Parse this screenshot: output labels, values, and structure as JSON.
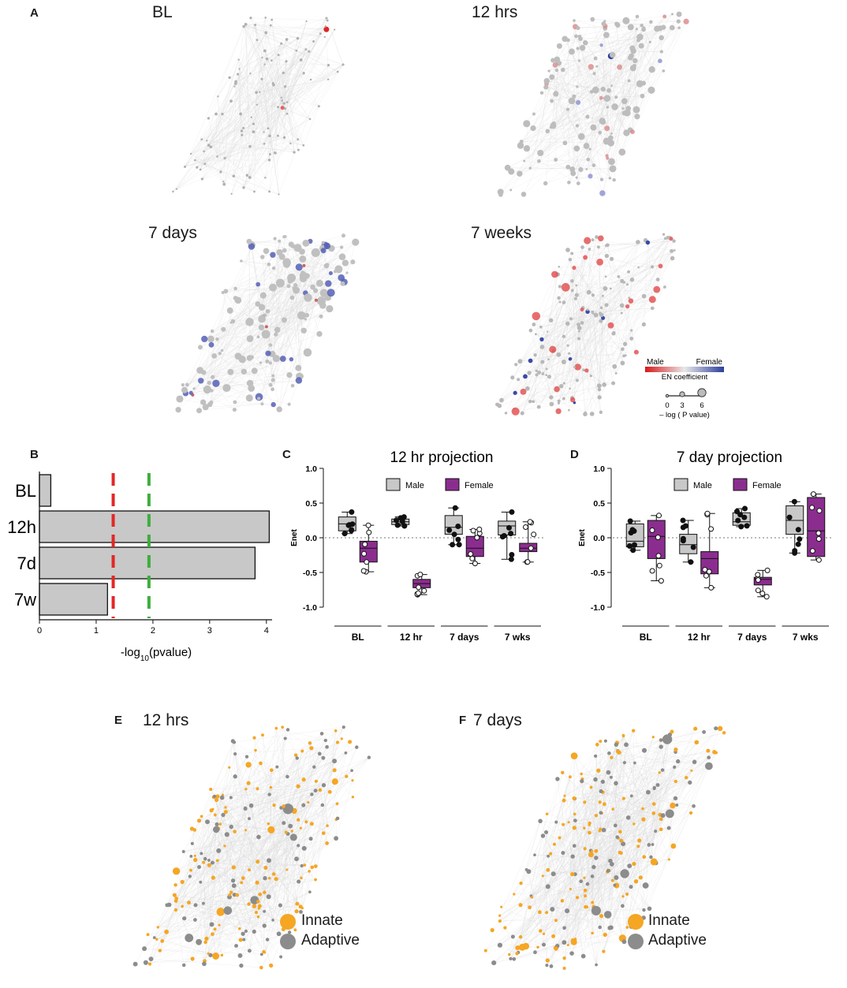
{
  "panel_A": {
    "letter": "A",
    "titles": [
      "BL",
      "12 hrs",
      "7 days",
      "7 weeks"
    ],
    "legend": {
      "male_label": "Male",
      "female_label": "Female",
      "color_title": "EN coefficient",
      "male_color": "#d7191c",
      "female_color": "#2c3e9c",
      "size_ticks": [
        "0",
        "3",
        "6"
      ],
      "size_title": "– log ( P value)"
    }
  },
  "panel_B": {
    "letter": "B",
    "xlabel_prefix": "-log",
    "xlabel_sub": "10",
    "xlabel_suffix": "(pvalue)",
    "chart_data": {
      "type": "bar",
      "orientation": "horizontal",
      "categories": [
        "BL",
        "12h",
        "7d",
        "7w"
      ],
      "values": [
        0.2,
        4.05,
        3.8,
        1.2
      ],
      "xlim": [
        0,
        4.1
      ],
      "xticks": [
        "0",
        "1",
        "2",
        "3",
        "4"
      ],
      "thresholds": [
        {
          "value": 1.3,
          "color": "#e32626"
        },
        {
          "value": 1.93,
          "color": "#3cae3c"
        }
      ]
    }
  },
  "panel_C": {
    "letter": "C",
    "chart_data": {
      "type": "box",
      "title": "12 hr projection",
      "ylabel": "Enet",
      "ylim": [
        -1.0,
        1.0
      ],
      "yticks": [
        "1.0",
        "0.5",
        "0.0",
        "-0.5",
        "-1.0"
      ],
      "groups": [
        "BL",
        "12 hr",
        "7 days",
        "7 wks"
      ],
      "legend": [
        "Male",
        "Female"
      ],
      "series": [
        {
          "name": "Male",
          "color": "#c8c8c8",
          "boxes": [
            {
              "min": 0.06,
              "q1": 0.1,
              "median": 0.2,
              "q3": 0.3,
              "max": 0.37
            },
            {
              "min": 0.17,
              "q1": 0.19,
              "median": 0.23,
              "q3": 0.27,
              "max": 0.3
            },
            {
              "min": -0.1,
              "q1": 0.05,
              "median": 0.15,
              "q3": 0.32,
              "max": 0.43
            },
            {
              "min": -0.31,
              "q1": 0.04,
              "median": 0.17,
              "q3": 0.24,
              "max": 0.37
            }
          ]
        },
        {
          "name": "Female",
          "color": "#8b2d8f",
          "boxes": [
            {
              "min": -0.49,
              "q1": -0.35,
              "median": -0.15,
              "q3": -0.05,
              "max": 0.18
            },
            {
              "min": -0.82,
              "q1": -0.72,
              "median": -0.66,
              "q3": -0.6,
              "max": -0.53
            },
            {
              "min": -0.37,
              "q1": -0.27,
              "median": -0.15,
              "q3": 0.02,
              "max": 0.12
            },
            {
              "min": -0.35,
              "q1": -0.2,
              "median": -0.15,
              "q3": -0.08,
              "max": 0.23
            }
          ]
        }
      ]
    }
  },
  "panel_D": {
    "letter": "D",
    "chart_data": {
      "type": "box",
      "title": "7 day projection",
      "ylabel": "Enet",
      "ylim": [
        -1.0,
        1.0
      ],
      "yticks": [
        "1.0",
        "0.5",
        "0.0",
        "-0.5",
        "-1.0"
      ],
      "groups": [
        "BL",
        "12 hr",
        "7 days",
        "7 wks"
      ],
      "legend": [
        "Male",
        "Female"
      ],
      "series": [
        {
          "name": "Male",
          "color": "#c8c8c8",
          "boxes": [
            {
              "min": -0.18,
              "q1": -0.13,
              "median": -0.05,
              "q3": 0.2,
              "max": 0.24
            },
            {
              "min": -0.35,
              "q1": -0.23,
              "median": -0.1,
              "q3": 0.05,
              "max": 0.25
            },
            {
              "min": 0.16,
              "q1": 0.18,
              "median": 0.23,
              "q3": 0.36,
              "max": 0.42
            },
            {
              "min": -0.22,
              "q1": 0.05,
              "median": 0.25,
              "q3": 0.46,
              "max": 0.52
            }
          ]
        },
        {
          "name": "Female",
          "color": "#8b2d8f",
          "boxes": [
            {
              "min": -0.62,
              "q1": -0.3,
              "median": 0.02,
              "q3": 0.25,
              "max": 0.32
            },
            {
              "min": -0.72,
              "q1": -0.52,
              "median": -0.3,
              "q3": -0.2,
              "max": 0.35
            },
            {
              "min": -0.85,
              "q1": -0.68,
              "median": -0.6,
              "q3": -0.57,
              "max": -0.47
            },
            {
              "min": -0.32,
              "q1": -0.27,
              "median": 0.1,
              "q3": 0.58,
              "max": 0.63
            }
          ]
        }
      ]
    }
  },
  "panel_E": {
    "letter": "E",
    "title": "12 hrs",
    "legend": [
      {
        "label": "Innate",
        "color": "#f5a623"
      },
      {
        "label": "Adaptive",
        "color": "#8c8c8c"
      }
    ]
  },
  "panel_F": {
    "letter": "F",
    "title": "7 days",
    "legend": [
      {
        "label": "Innate",
        "color": "#f5a623"
      },
      {
        "label": "Adaptive",
        "color": "#8c8c8c"
      }
    ]
  }
}
